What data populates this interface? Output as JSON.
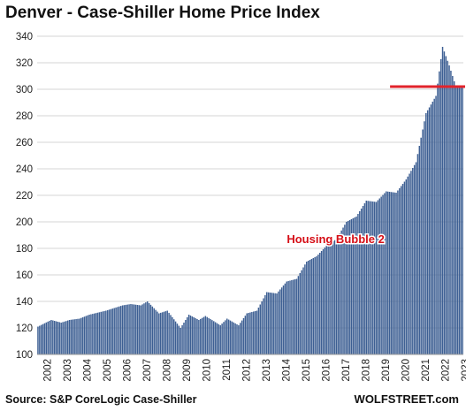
{
  "colors": {
    "bar": "#3d5f93",
    "bar_edge": "#233f6e",
    "grid": "#d4d4d4",
    "axis_text": "#222222",
    "reference_line": "#e2232b",
    "annotation_text": "#d60f17"
  },
  "footer": {
    "source": "Source: S&P CoreLogic Case-Shiller",
    "brand": "WOLFSTREET.com"
  },
  "chart_data": {
    "type": "bar",
    "title": "Denver  - Case-Shiller Home Price Index",
    "xlabel": "",
    "ylabel": "",
    "ylim": [
      100,
      340
    ],
    "yticks": [
      100,
      120,
      140,
      160,
      180,
      200,
      220,
      240,
      260,
      280,
      300,
      320,
      340
    ],
    "grid": true,
    "legend": "none",
    "frequency": "monthly",
    "x_start": "2002-01",
    "x_end": "2023-05",
    "xtick_labels": [
      "2002",
      "2003",
      "2004",
      "2005",
      "2006",
      "2007",
      "2008",
      "2009",
      "2010",
      "2011",
      "2012",
      "2013",
      "2014",
      "2015",
      "2016",
      "2017",
      "2018",
      "2019",
      "2020",
      "2021",
      "2022",
      "2023"
    ],
    "annotation": {
      "text": "Housing Bubble 2",
      "at_year": 2017.0,
      "at_value": 182
    },
    "reference_line": {
      "value": 302,
      "from": "2020-01",
      "to": "2023-05"
    },
    "series": [
      {
        "anchors": [
          [
            "2002-01",
            121
          ],
          [
            "2002-09",
            126
          ],
          [
            "2003-03",
            124
          ],
          [
            "2003-08",
            126
          ],
          [
            "2004-02",
            127
          ],
          [
            "2004-08",
            130
          ],
          [
            "2005-06",
            133
          ],
          [
            "2006-04",
            137
          ],
          [
            "2006-09",
            138
          ],
          [
            "2007-03",
            137
          ],
          [
            "2007-07",
            140
          ],
          [
            "2008-02",
            131
          ],
          [
            "2008-07",
            133
          ],
          [
            "2009-03",
            120
          ],
          [
            "2009-08",
            130
          ],
          [
            "2010-02",
            126
          ],
          [
            "2010-06",
            129
          ],
          [
            "2011-03",
            122
          ],
          [
            "2011-07",
            127
          ],
          [
            "2012-02",
            122
          ],
          [
            "2012-07",
            131
          ],
          [
            "2013-01",
            133
          ],
          [
            "2013-07",
            147
          ],
          [
            "2014-01",
            146
          ],
          [
            "2014-07",
            155
          ],
          [
            "2015-01",
            157
          ],
          [
            "2015-07",
            170
          ],
          [
            "2016-01",
            174
          ],
          [
            "2016-07",
            182
          ],
          [
            "2017-01",
            187
          ],
          [
            "2017-07",
            200
          ],
          [
            "2018-01",
            204
          ],
          [
            "2018-07",
            216
          ],
          [
            "2019-01",
            215
          ],
          [
            "2019-07",
            223
          ],
          [
            "2020-01",
            222
          ],
          [
            "2020-07",
            232
          ],
          [
            "2021-01",
            245
          ],
          [
            "2021-07",
            282
          ],
          [
            "2022-01",
            295
          ],
          [
            "2022-05",
            332
          ],
          [
            "2022-09",
            318
          ],
          [
            "2023-01",
            302
          ],
          [
            "2023-05",
            301
          ]
        ]
      }
    ]
  }
}
